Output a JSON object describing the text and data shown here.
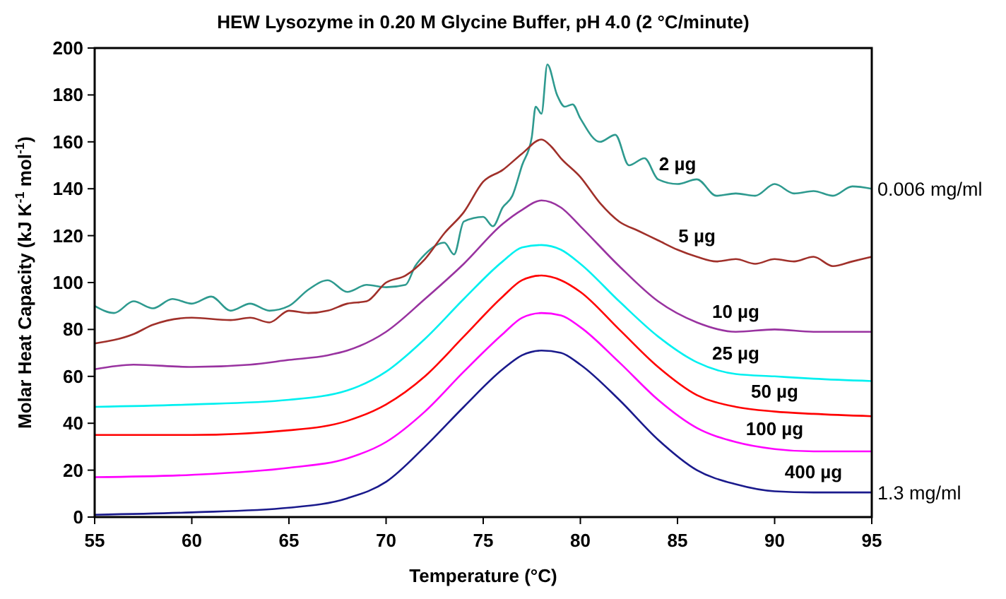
{
  "chart_data": {
    "type": "line",
    "title": "HEW Lysozyme in 0.20 M Glycine Buffer, pH 4.0 (2 °C/minute)",
    "xlabel": "Temperature (°C)",
    "ylabel": "Molar Heat Capacity (kJ K$^{-1}$ mol$^{-1}$)",
    "xlim": [
      55,
      95
    ],
    "xticks": [
      55,
      60,
      65,
      70,
      75,
      80,
      85,
      90,
      95
    ],
    "ylim": [
      0,
      200
    ],
    "yticks": [
      0,
      20,
      40,
      60,
      80,
      100,
      120,
      140,
      160,
      180,
      200
    ],
    "grid": false,
    "marker": "none",
    "line_style": "solid",
    "annotations": [
      {
        "text": "0.006 mg/ml",
        "x": 95,
        "y": 140
      },
      {
        "text": "1.3 mg/ml",
        "x": 95,
        "y": 10.5
      }
    ],
    "series": [
      {
        "name": "2 µg",
        "color": "#2e9a8f",
        "x": [
          55,
          56,
          57,
          58,
          59,
          60,
          61,
          62,
          63,
          64,
          65,
          66,
          67,
          68,
          69,
          70,
          71,
          71.5,
          72,
          73,
          73.5,
          74,
          75,
          75.5,
          76,
          76.5,
          77,
          77.5,
          77.7,
          78,
          78.3,
          78.8,
          79.2,
          79.6,
          80,
          81,
          81.8,
          82.5,
          83.3,
          84,
          85,
          86,
          87,
          88,
          89,
          90,
          91,
          92,
          93,
          94,
          95
        ],
        "values": [
          90,
          87,
          92,
          89,
          93,
          91,
          94,
          88,
          91,
          88,
          90,
          97,
          101,
          96,
          99,
          98,
          99,
          107,
          112,
          117,
          112,
          126,
          128,
          124,
          132,
          137,
          150,
          162,
          175,
          172,
          193,
          180,
          175,
          176,
          170,
          160,
          163,
          150,
          153,
          144,
          142,
          144,
          137,
          138,
          137,
          142,
          138,
          139,
          137,
          141,
          140
        ]
      },
      {
        "name": "5 µg",
        "color": "#a0302a",
        "x": [
          55,
          57,
          58,
          60,
          62,
          63,
          64,
          65,
          66,
          67,
          68,
          69,
          70,
          71,
          72,
          73,
          74,
          75,
          76,
          77,
          78,
          78.5,
          79,
          80,
          81,
          82,
          83,
          84,
          85,
          86,
          87,
          88,
          89,
          90,
          91,
          92,
          93,
          94,
          95
        ],
        "values": [
          74,
          78,
          82,
          85,
          84,
          85,
          83,
          88,
          87,
          88,
          91,
          92,
          100,
          103,
          110,
          121,
          130,
          143,
          148,
          155,
          161,
          158,
          153,
          145,
          134,
          126,
          122,
          118,
          114,
          111,
          109,
          110,
          108,
          110,
          109,
          111,
          107,
          109,
          111
        ]
      },
      {
        "name": "10 µg",
        "color": "#9933a0",
        "x": [
          55,
          57,
          60,
          63,
          65,
          67,
          68,
          70,
          72,
          74,
          76,
          77,
          78,
          79,
          80,
          82,
          84,
          86,
          88,
          90,
          92,
          95
        ],
        "values": [
          63,
          65,
          64,
          65,
          67,
          69,
          71,
          79,
          93,
          108,
          125,
          131,
          135,
          132,
          124,
          107,
          92,
          83,
          79,
          80,
          79,
          79
        ]
      },
      {
        "name": "25 µg",
        "color": "#00f0f0",
        "x": [
          55,
          60,
          65,
          68,
          70,
          72,
          74,
          76,
          77,
          78,
          79,
          80,
          82,
          84,
          86,
          88,
          90,
          92,
          95
        ],
        "values": [
          47,
          48,
          50,
          54,
          62,
          76,
          93,
          109,
          115,
          116,
          114,
          108,
          92,
          77,
          66,
          61,
          60,
          59,
          58
        ]
      },
      {
        "name": "50 µg",
        "color": "#ff0000",
        "x": [
          55,
          60,
          65,
          68,
          70,
          72,
          74,
          76,
          77,
          78,
          79,
          80,
          82,
          84,
          86,
          88,
          90,
          92,
          95
        ],
        "values": [
          35,
          35,
          37,
          41,
          48,
          60,
          77,
          94,
          101,
          103,
          101,
          96,
          80,
          64,
          52,
          47,
          45,
          44,
          43
        ]
      },
      {
        "name": "100 µg",
        "color": "#ff00ff",
        "x": [
          55,
          60,
          65,
          68,
          70,
          72,
          74,
          76,
          77,
          78,
          79,
          80,
          82,
          84,
          86,
          88,
          90,
          92,
          95
        ],
        "values": [
          17,
          18,
          21,
          25,
          32,
          45,
          62,
          78,
          85,
          87,
          86,
          81,
          66,
          50,
          38,
          32,
          29,
          28,
          28
        ]
      },
      {
        "name": "400 µg",
        "color": "#1a1a8c",
        "x": [
          55,
          60,
          65,
          68,
          70,
          72,
          74,
          76,
          77,
          78,
          79,
          80,
          82,
          84,
          86,
          88,
          90,
          92,
          95
        ],
        "values": [
          1,
          2,
          4,
          8,
          15,
          30,
          47,
          63,
          69,
          71,
          70,
          65,
          50,
          33,
          20,
          14,
          11,
          10.5,
          10.5
        ]
      }
    ]
  }
}
